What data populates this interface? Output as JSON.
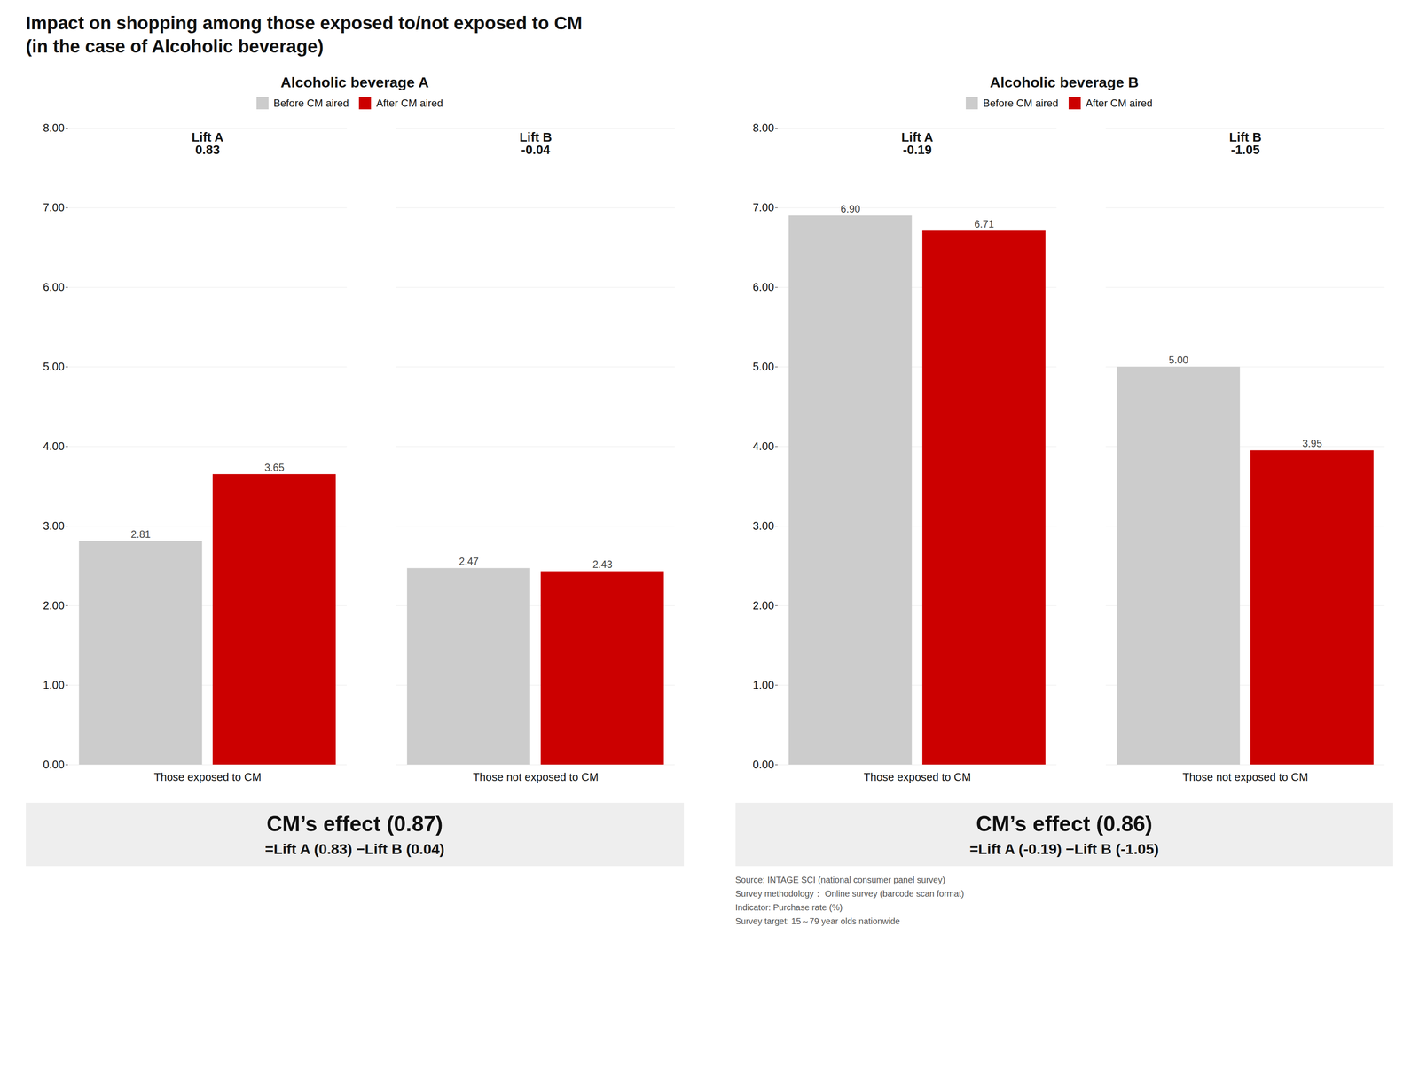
{
  "title": "Impact on shopping among those exposed to/not exposed to CM",
  "subtitle": "(in the case of Alcoholic beverage)",
  "caption": "Source: INTAGE SCI (national consumer panel survey)\nSurvey methodology： Online survey (barcode scan format)\nIndicator: Purchase rate (%)\nSurvey target: 15～79 year olds nationwide",
  "chart_data": [
    {
      "type": "bar",
      "title": "Alcoholic beverage A",
      "categories": [
        "Those exposed to CM",
        "Those not exposed to CM"
      ],
      "series": [
        {
          "name": "Before CM aired",
          "color": "#cccccc",
          "values": [
            2.81,
            2.47
          ],
          "value_labels": [
            "2.81",
            "2.47"
          ]
        },
        {
          "name": "After CM aired",
          "color": "#cc0000",
          "values": [
            3.65,
            2.43
          ],
          "value_labels": [
            "3.65",
            "2.43"
          ]
        }
      ],
      "ylim": [
        0.0,
        8.0
      ],
      "yticks": [
        {
          "value": 0,
          "label": "0.00"
        },
        {
          "value": 1,
          "label": "1.00"
        },
        {
          "value": 2,
          "label": "2.00"
        },
        {
          "value": 3,
          "label": "3.00"
        },
        {
          "value": 4,
          "label": "4.00"
        },
        {
          "value": 5,
          "label": "5.00"
        },
        {
          "value": 6,
          "label": "6.00"
        },
        {
          "value": 7,
          "label": "7.00"
        },
        {
          "value": 8,
          "label": "8.00"
        }
      ],
      "grid": true,
      "legend": "top",
      "data_labels": true,
      "annotations": [
        {
          "label": "Lift A",
          "text": "0.83"
        },
        {
          "label": "Lift B",
          "text": "-0.04"
        },
        {
          "label": "CM’s effect (0.87)",
          "text": "=Lift A (0.83) −Lift B (0.04)"
        }
      ]
    },
    {
      "type": "bar",
      "title": "Alcoholic beverage B",
      "categories": [
        "Those exposed to CM",
        "Those not exposed to CM"
      ],
      "series": [
        {
          "name": "Before CM aired",
          "color": "#cccccc",
          "values": [
            6.9,
            5.0
          ],
          "value_labels": [
            "6.90",
            "5.00"
          ]
        },
        {
          "name": "After CM aired",
          "color": "#cc0000",
          "values": [
            6.71,
            3.95
          ],
          "value_labels": [
            "6.71",
            "3.95"
          ]
        }
      ],
      "ylim": [
        0.0,
        8.0
      ],
      "yticks": [
        {
          "value": 0,
          "label": "0.00"
        },
        {
          "value": 1,
          "label": "1.00"
        },
        {
          "value": 2,
          "label": "2.00"
        },
        {
          "value": 3,
          "label": "3.00"
        },
        {
          "value": 4,
          "label": "4.00"
        },
        {
          "value": 5,
          "label": "5.00"
        },
        {
          "value": 6,
          "label": "6.00"
        },
        {
          "value": 7,
          "label": "7.00"
        },
        {
          "value": 8,
          "label": "8.00"
        }
      ],
      "grid": true,
      "legend": "top",
      "data_labels": true,
      "annotations": [
        {
          "label": "Lift A",
          "text": "-0.19"
        },
        {
          "label": "Lift B",
          "text": "-1.05"
        },
        {
          "label": "CM’s effect (0.86)",
          "text": "=Lift A (-0.19) −Lift B (-1.05)"
        }
      ]
    }
  ]
}
